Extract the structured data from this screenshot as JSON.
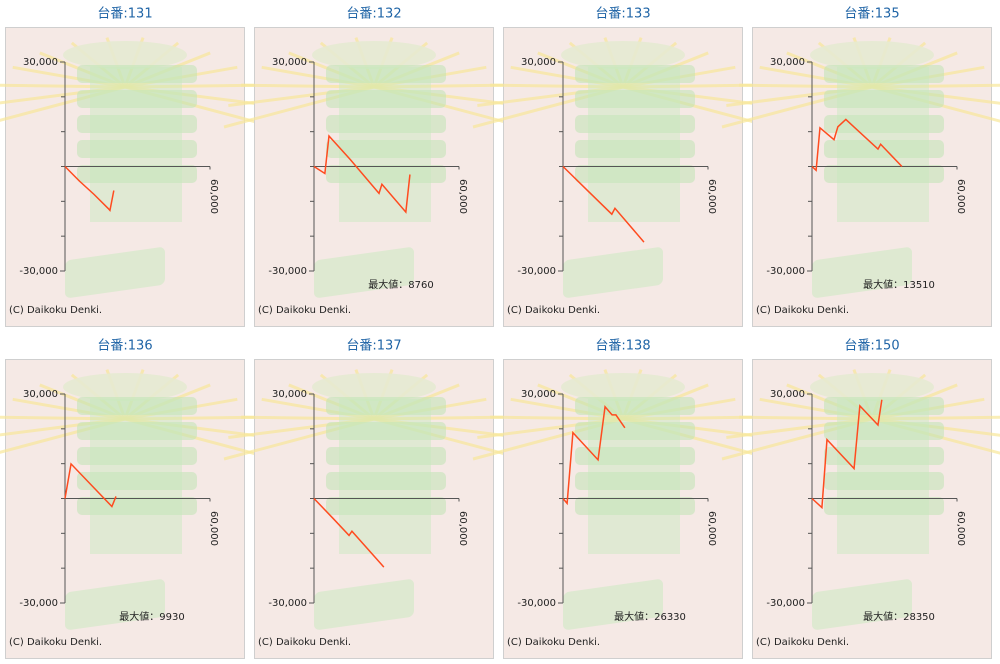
{
  "chart_data": [
    {
      "type": "line",
      "title": "台番:131",
      "color": "#ff4b1f",
      "x": [
        0,
        6000,
        12000,
        17800,
        18600,
        20200
      ],
      "values": [
        0,
        -4200,
        -8000,
        -12000,
        -12600,
        -6900
      ],
      "xlim": [
        0,
        60000
      ],
      "xticks": [
        {
          "value": 60000,
          "label": "60,000"
        }
      ],
      "ylim": [
        -30000,
        30000
      ],
      "yticks": [
        {
          "value": 30000,
          "label": "30,000"
        },
        {
          "value": -30000,
          "label": "-30,000"
        }
      ],
      "yminorticks": [
        20000,
        10000,
        0,
        -10000,
        -20000
      ],
      "credit": "(C) Daikoku Denki."
    },
    {
      "type": "line",
      "title": "台番:132",
      "color": "#ff4b1f",
      "x": [
        0,
        4500,
        6200,
        15000,
        26900,
        28100,
        38000,
        39700
      ],
      "values": [
        0,
        -2000,
        8760,
        2000,
        -7700,
        -5100,
        -13100,
        -2300
      ],
      "xlim": [
        0,
        60000
      ],
      "xticks": [
        {
          "value": 60000,
          "label": "60,000"
        }
      ],
      "ylim": [
        -30000,
        30000
      ],
      "yticks": [
        {
          "value": 30000,
          "label": "30,000"
        },
        {
          "value": -30000,
          "label": "-30,000"
        }
      ],
      "yminorticks": [
        20000,
        10000,
        0,
        -10000,
        -20000
      ],
      "annotation": "最大値：8760",
      "credit": "(C) Daikoku Denki."
    },
    {
      "type": "line",
      "title": "台番:133",
      "color": "#ff4b1f",
      "x": [
        0,
        10000,
        20200,
        21500,
        33500
      ],
      "values": [
        0,
        -6800,
        -13700,
        -12000,
        -21700
      ],
      "xlim": [
        0,
        60000
      ],
      "xticks": [
        {
          "value": 60000,
          "label": "60,000"
        }
      ],
      "ylim": [
        -30000,
        30000
      ],
      "yticks": [
        {
          "value": 30000,
          "label": "30,000"
        },
        {
          "value": -30000,
          "label": "-30,000"
        }
      ],
      "yminorticks": [
        20000,
        10000,
        0,
        -10000,
        -20000
      ],
      "credit": "(C) Daikoku Denki."
    },
    {
      "type": "line",
      "title": "台番:135",
      "color": "#ff4b1f",
      "x": [
        0,
        1700,
        3300,
        9100,
        10700,
        14000,
        27300,
        28400,
        37200
      ],
      "values": [
        0,
        -1100,
        11100,
        7700,
        11400,
        13510,
        5000,
        6400,
        0
      ],
      "xlim": [
        0,
        60000
      ],
      "xticks": [
        {
          "value": 60000,
          "label": "60,000"
        }
      ],
      "ylim": [
        -30000,
        30000
      ],
      "yticks": [
        {
          "value": 30000,
          "label": "30,000"
        },
        {
          "value": -30000,
          "label": "-30,000"
        }
      ],
      "yminorticks": [
        20000,
        10000,
        0,
        -10000,
        -20000
      ],
      "annotation": "最大値：13510",
      "credit": "(C) Daikoku Denki."
    },
    {
      "type": "line",
      "title": "台番:136",
      "color": "#ff4b1f",
      "x": [
        0,
        2500,
        19400,
        21100
      ],
      "values": [
        0,
        9930,
        -2300,
        600
      ],
      "xlim": [
        0,
        60000
      ],
      "xticks": [
        {
          "value": 60000,
          "label": "60,000"
        }
      ],
      "ylim": [
        -30000,
        30000
      ],
      "yticks": [
        {
          "value": 30000,
          "label": "30,000"
        },
        {
          "value": -30000,
          "label": "-30,000"
        }
      ],
      "yminorticks": [
        20000,
        10000,
        0,
        -10000,
        -20000
      ],
      "annotation": "最大値：9930",
      "credit": "(C) Daikoku Denki."
    },
    {
      "type": "line",
      "title": "台番:137",
      "color": "#ff4b1f",
      "x": [
        0,
        8000,
        14500,
        15700,
        28900
      ],
      "values": [
        0,
        -5800,
        -10600,
        -9400,
        -19700
      ],
      "xlim": [
        0,
        60000
      ],
      "xticks": [
        {
          "value": 60000,
          "label": "60,000"
        }
      ],
      "ylim": [
        -30000,
        30000
      ],
      "yticks": [
        {
          "value": 30000,
          "label": "30,000"
        },
        {
          "value": -30000,
          "label": "-30,000"
        }
      ],
      "yminorticks": [
        20000,
        10000,
        0,
        -10000,
        -20000
      ],
      "credit": "(C) Daikoku Denki."
    },
    {
      "type": "line",
      "title": "台番:138",
      "color": "#ff4b1f",
      "x": [
        0,
        1700,
        4100,
        14500,
        17400,
        20300,
        21900,
        25600
      ],
      "values": [
        0,
        -1400,
        18900,
        11100,
        26330,
        24000,
        24000,
        20300
      ],
      "xlim": [
        0,
        60000
      ],
      "xticks": [
        {
          "value": 60000,
          "label": "60,000"
        }
      ],
      "ylim": [
        -30000,
        30000
      ],
      "yticks": [
        {
          "value": 30000,
          "label": "30,000"
        },
        {
          "value": -30000,
          "label": "-30,000"
        }
      ],
      "yminorticks": [
        20000,
        10000,
        0,
        -10000,
        -20000
      ],
      "annotation": "最大値：26330",
      "credit": "(C) Daikoku Denki."
    },
    {
      "type": "line",
      "title": "台番:150",
      "color": "#ff4b1f",
      "x": [
        0,
        4100,
        6200,
        17400,
        19800,
        27300,
        28900
      ],
      "values": [
        0,
        -2600,
        16900,
        8600,
        26600,
        21100,
        28350
      ],
      "xlim": [
        0,
        60000
      ],
      "xticks": [
        {
          "value": 60000,
          "label": "60,000"
        }
      ],
      "ylim": [
        -30000,
        30000
      ],
      "yticks": [
        {
          "value": 30000,
          "label": "30,000"
        },
        {
          "value": -30000,
          "label": "-30,000"
        }
      ],
      "yminorticks": [
        20000,
        10000,
        0,
        -10000,
        -20000
      ],
      "annotation": "最大値：28350",
      "credit": "(C) Daikoku Denki."
    }
  ]
}
